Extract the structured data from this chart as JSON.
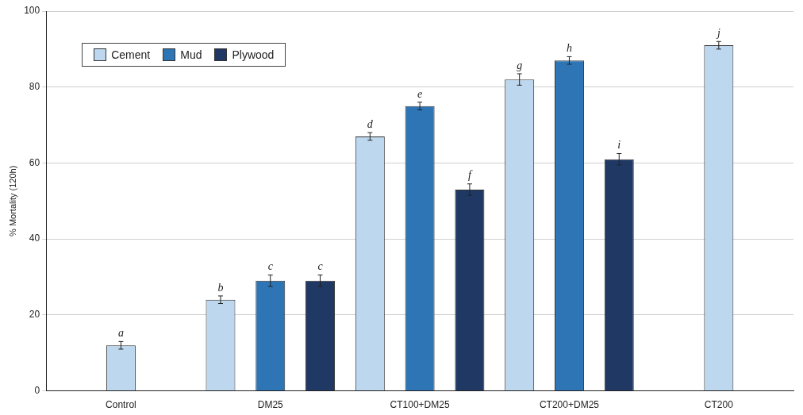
{
  "chart_data": {
    "type": "bar",
    "ylabel": "% Mortality (120h)",
    "categories": [
      "Control",
      "DM25",
      "CT100+DM25",
      "CT200+DM25",
      "CT200"
    ],
    "series": [
      {
        "name": "Cement",
        "color": "#bdd7ee",
        "values": [
          12,
          24,
          67,
          82,
          91
        ],
        "errors": [
          1,
          1,
          1,
          1.5,
          1
        ]
      },
      {
        "name": "Mud",
        "color": "#2e75b6",
        "values": [
          null,
          29,
          75,
          87,
          null
        ],
        "errors": [
          null,
          1.5,
          1,
          1,
          null
        ]
      },
      {
        "name": "Plywood",
        "color": "#1f3864",
        "values": [
          null,
          29,
          53,
          61,
          null
        ],
        "errors": [
          null,
          1.5,
          1.5,
          1.5,
          null
        ]
      }
    ],
    "ylim": [
      0,
      100
    ],
    "yticks": [
      0,
      20,
      40,
      60,
      80,
      100
    ],
    "grid": "y",
    "legend": "top left",
    "annotations": [
      "a",
      "b",
      "c",
      "c",
      "d",
      "e",
      "f",
      "g",
      "h",
      "i",
      "j"
    ]
  }
}
